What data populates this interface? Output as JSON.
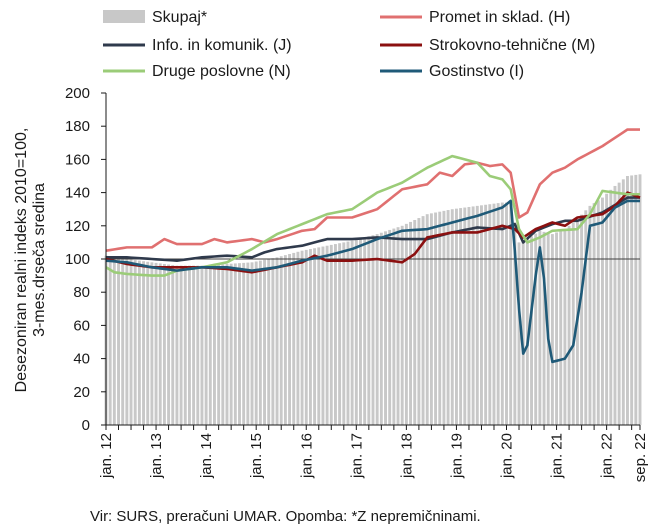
{
  "chart_data": {
    "type": "line",
    "ylabel_lines": [
      "Desezoniran realni indeks 2010=100,",
      "3-mes.drseča sredina"
    ],
    "ylim": [
      0,
      200
    ],
    "yticks": [
      0,
      20,
      40,
      60,
      80,
      100,
      120,
      140,
      160,
      180,
      200
    ],
    "reference_line": 100,
    "x_start": "2012-01",
    "x_end": "2022-09",
    "xtick_labels": [
      "jan. 12",
      "jan. 13",
      "jan. 14",
      "jan. 15",
      "jan. 16",
      "jan. 17",
      "jan. 18",
      "jan. 19",
      "jan. 20",
      "jan. 21",
      "jan. 22",
      "sep. 22"
    ],
    "legend": [
      {
        "key": "total",
        "label": "Skupaj*"
      },
      {
        "key": "trade",
        "label": "Promet in sklad. (H)"
      },
      {
        "key": "info",
        "label": "Info. in komunik. (J)"
      },
      {
        "key": "prof",
        "label": "Strokovno-tehnične (M)"
      },
      {
        "key": "other",
        "label": "Druge poslovne (N)"
      },
      {
        "key": "hosp",
        "label": "Gostinstvo (I)"
      }
    ],
    "series": [
      {
        "key": "total",
        "name": "Skupaj*",
        "kind": "bar",
        "color": "#c8c8c8",
        "points": [
          [
            "2012-01",
            102
          ],
          [
            "2012-06",
            100
          ],
          [
            "2012-12",
            98
          ],
          [
            "2013-06",
            96
          ],
          [
            "2013-12",
            96
          ],
          [
            "2014-06",
            97
          ],
          [
            "2014-12",
            98
          ],
          [
            "2015-06",
            101
          ],
          [
            "2015-12",
            105
          ],
          [
            "2016-06",
            108
          ],
          [
            "2016-12",
            111
          ],
          [
            "2017-06",
            115
          ],
          [
            "2017-12",
            120
          ],
          [
            "2018-06",
            127
          ],
          [
            "2018-12",
            130
          ],
          [
            "2019-06",
            132
          ],
          [
            "2019-12",
            134
          ],
          [
            "2020-02",
            134
          ],
          [
            "2020-03",
            122
          ],
          [
            "2020-04",
            110
          ],
          [
            "2020-06",
            112
          ],
          [
            "2020-09",
            117
          ],
          [
            "2020-12",
            115
          ],
          [
            "2021-03",
            118
          ],
          [
            "2021-06",
            124
          ],
          [
            "2021-09",
            132
          ],
          [
            "2021-12",
            137
          ],
          [
            "2022-03",
            144
          ],
          [
            "2022-06",
            150
          ],
          [
            "2022-09",
            151
          ]
        ]
      },
      {
        "key": "trade",
        "name": "Promet in sklad. (H)",
        "kind": "line",
        "color": "#e07070",
        "points": [
          [
            "2012-01",
            105
          ],
          [
            "2012-06",
            107
          ],
          [
            "2012-12",
            107
          ],
          [
            "2013-03",
            112
          ],
          [
            "2013-06",
            109
          ],
          [
            "2013-12",
            109
          ],
          [
            "2014-03",
            112
          ],
          [
            "2014-06",
            110
          ],
          [
            "2014-12",
            112
          ],
          [
            "2015-03",
            110
          ],
          [
            "2015-06",
            112
          ],
          [
            "2015-12",
            117
          ],
          [
            "2016-03",
            118
          ],
          [
            "2016-06",
            125
          ],
          [
            "2016-12",
            125
          ],
          [
            "2017-06",
            130
          ],
          [
            "2017-12",
            142
          ],
          [
            "2018-06",
            145
          ],
          [
            "2018-09",
            152
          ],
          [
            "2018-12",
            150
          ],
          [
            "2019-03",
            157
          ],
          [
            "2019-06",
            158
          ],
          [
            "2019-09",
            156
          ],
          [
            "2019-12",
            157
          ],
          [
            "2020-02",
            152
          ],
          [
            "2020-04",
            125
          ],
          [
            "2020-06",
            128
          ],
          [
            "2020-09",
            145
          ],
          [
            "2020-12",
            152
          ],
          [
            "2021-03",
            155
          ],
          [
            "2021-06",
            160
          ],
          [
            "2021-12",
            168
          ],
          [
            "2022-03",
            173
          ],
          [
            "2022-06",
            178
          ],
          [
            "2022-09",
            178
          ]
        ]
      },
      {
        "key": "info",
        "name": "Info. in komunik. (J)",
        "kind": "line",
        "color": "#2f3a4c",
        "points": [
          [
            "2012-01",
            101
          ],
          [
            "2012-06",
            101
          ],
          [
            "2012-12",
            100
          ],
          [
            "2013-06",
            99
          ],
          [
            "2013-12",
            101
          ],
          [
            "2014-06",
            102
          ],
          [
            "2014-12",
            101
          ],
          [
            "2015-03",
            104
          ],
          [
            "2015-06",
            106
          ],
          [
            "2015-12",
            108
          ],
          [
            "2016-06",
            112
          ],
          [
            "2016-12",
            112
          ],
          [
            "2017-06",
            113
          ],
          [
            "2017-12",
            112
          ],
          [
            "2018-06",
            112
          ],
          [
            "2018-12",
            116
          ],
          [
            "2019-06",
            119
          ],
          [
            "2019-12",
            118
          ],
          [
            "2020-03",
            121
          ],
          [
            "2020-05",
            110
          ],
          [
            "2020-08",
            117
          ],
          [
            "2020-12",
            121
          ],
          [
            "2021-03",
            123
          ],
          [
            "2021-06",
            123
          ],
          [
            "2021-12",
            128
          ],
          [
            "2022-06",
            137
          ],
          [
            "2022-09",
            137
          ]
        ]
      },
      {
        "key": "prof",
        "name": "Strokovno-tehnične (M)",
        "kind": "line",
        "color": "#8b1010",
        "points": [
          [
            "2012-01",
            100
          ],
          [
            "2012-06",
            97
          ],
          [
            "2012-12",
            95
          ],
          [
            "2013-06",
            95
          ],
          [
            "2013-12",
            95
          ],
          [
            "2014-06",
            94
          ],
          [
            "2014-12",
            92
          ],
          [
            "2015-06",
            95
          ],
          [
            "2015-12",
            98
          ],
          [
            "2016-03",
            102
          ],
          [
            "2016-06",
            99
          ],
          [
            "2016-12",
            99
          ],
          [
            "2017-06",
            100
          ],
          [
            "2017-12",
            98
          ],
          [
            "2018-03",
            103
          ],
          [
            "2018-06",
            113
          ],
          [
            "2018-12",
            116
          ],
          [
            "2019-06",
            116
          ],
          [
            "2019-12",
            120
          ],
          [
            "2020-03",
            118
          ],
          [
            "2020-05",
            113
          ],
          [
            "2020-08",
            118
          ],
          [
            "2020-12",
            122
          ],
          [
            "2021-03",
            120
          ],
          [
            "2021-06",
            125
          ],
          [
            "2021-12",
            127
          ],
          [
            "2022-03",
            132
          ],
          [
            "2022-06",
            140
          ],
          [
            "2022-09",
            137
          ]
        ]
      },
      {
        "key": "other",
        "name": "Druge poslovne (N)",
        "kind": "line",
        "color": "#9bcc78",
        "points": [
          [
            "2012-01",
            95
          ],
          [
            "2012-03",
            92
          ],
          [
            "2012-06",
            91
          ],
          [
            "2012-12",
            90
          ],
          [
            "2013-03",
            90
          ],
          [
            "2013-06",
            93
          ],
          [
            "2013-12",
            95
          ],
          [
            "2014-06",
            98
          ],
          [
            "2014-12",
            106
          ],
          [
            "2015-06",
            115
          ],
          [
            "2015-12",
            121
          ],
          [
            "2016-06",
            127
          ],
          [
            "2016-12",
            130
          ],
          [
            "2017-06",
            140
          ],
          [
            "2017-12",
            146
          ],
          [
            "2018-06",
            155
          ],
          [
            "2018-12",
            162
          ],
          [
            "2019-06",
            158
          ],
          [
            "2019-09",
            150
          ],
          [
            "2019-12",
            148
          ],
          [
            "2020-02",
            142
          ],
          [
            "2020-04",
            118
          ],
          [
            "2020-06",
            110
          ],
          [
            "2020-09",
            113
          ],
          [
            "2020-12",
            117
          ],
          [
            "2021-06",
            118
          ],
          [
            "2021-09",
            127
          ],
          [
            "2021-12",
            141
          ],
          [
            "2022-03",
            140
          ],
          [
            "2022-06",
            139
          ],
          [
            "2022-09",
            139
          ]
        ]
      },
      {
        "key": "hosp",
        "name": "Gostinstvo (I)",
        "kind": "line",
        "color": "#1f5a78",
        "points": [
          [
            "2012-01",
            99
          ],
          [
            "2012-06",
            98
          ],
          [
            "2012-12",
            95
          ],
          [
            "2013-06",
            93
          ],
          [
            "2013-12",
            95
          ],
          [
            "2014-06",
            95
          ],
          [
            "2014-12",
            93
          ],
          [
            "2015-06",
            95
          ],
          [
            "2015-12",
            99
          ],
          [
            "2016-06",
            102
          ],
          [
            "2016-12",
            106
          ],
          [
            "2017-06",
            112
          ],
          [
            "2017-12",
            117
          ],
          [
            "2018-06",
            118
          ],
          [
            "2018-12",
            122
          ],
          [
            "2019-06",
            126
          ],
          [
            "2019-12",
            131
          ],
          [
            "2020-02",
            135
          ],
          [
            "2020-03",
            105
          ],
          [
            "2020-04",
            70
          ],
          [
            "2020-05",
            43
          ],
          [
            "2020-06",
            48
          ],
          [
            "2020-08",
            90
          ],
          [
            "2020-09",
            107
          ],
          [
            "2020-10",
            88
          ],
          [
            "2020-11",
            52
          ],
          [
            "2020-12",
            38
          ],
          [
            "2021-03",
            40
          ],
          [
            "2021-05",
            48
          ],
          [
            "2021-07",
            80
          ],
          [
            "2021-09",
            120
          ],
          [
            "2021-12",
            122
          ],
          [
            "2022-03",
            131
          ],
          [
            "2022-06",
            135
          ],
          [
            "2022-09",
            135
          ]
        ]
      }
    ]
  },
  "source_note": "Vir: SURS, preračuni UMAR. Opomba: *Z nepremičninami."
}
